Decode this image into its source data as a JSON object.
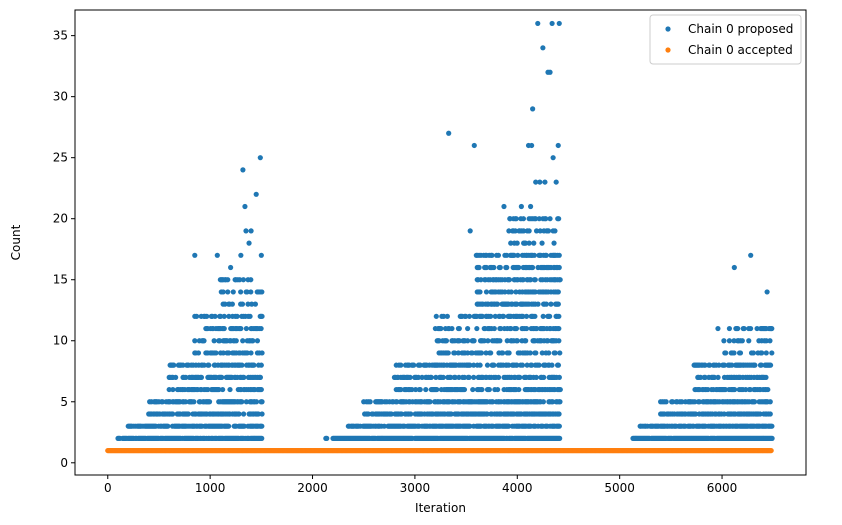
{
  "chart_data": {
    "type": "scatter",
    "title": "",
    "xlabel": "Iteration",
    "ylabel": "Count",
    "xlim": [
      -320,
      6820
    ],
    "ylim": [
      -1,
      37.1
    ],
    "xticks": [
      0,
      1000,
      2000,
      3000,
      4000,
      5000,
      6000
    ],
    "yticks": [
      0,
      5,
      10,
      15,
      20,
      25,
      30,
      35
    ],
    "legend_position": "top-right",
    "series": [
      {
        "name": "Chain 0 proposed",
        "color": "#1f77b4",
        "bands": [
          {
            "x0": 100,
            "x1": 1510,
            "y0": 2,
            "y1": 2,
            "density": 0.9
          },
          {
            "x0": 2130,
            "x1": 2140,
            "y0": 2,
            "y1": 2,
            "density": 1.0
          },
          {
            "x0": 2200,
            "x1": 4420,
            "y0": 2,
            "y1": 2,
            "density": 0.95
          },
          {
            "x0": 5130,
            "x1": 6490,
            "y0": 2,
            "y1": 2,
            "density": 0.95
          },
          {
            "x0": 200,
            "x1": 1510,
            "y0": 3,
            "y1": 3,
            "density": 0.75
          },
          {
            "x0": 2350,
            "x1": 4420,
            "y0": 3,
            "y1": 3,
            "density": 0.75
          },
          {
            "x0": 5200,
            "x1": 6490,
            "y0": 3,
            "y1": 3,
            "density": 0.75
          },
          {
            "x0": 400,
            "x1": 1510,
            "y0": 4,
            "y1": 5,
            "density": 0.6
          },
          {
            "x0": 2500,
            "x1": 4420,
            "y0": 4,
            "y1": 5,
            "density": 0.65
          },
          {
            "x0": 5400,
            "x1": 6490,
            "y0": 4,
            "y1": 5,
            "density": 0.6
          },
          {
            "x0": 600,
            "x1": 1510,
            "y0": 6,
            "y1": 8,
            "density": 0.5
          },
          {
            "x0": 2800,
            "x1": 4420,
            "y0": 6,
            "y1": 8,
            "density": 0.5
          },
          {
            "x0": 5700,
            "x1": 6490,
            "y0": 6,
            "y1": 8,
            "density": 0.45
          },
          {
            "x0": 850,
            "x1": 1510,
            "y0": 9,
            "y1": 12,
            "density": 0.35
          },
          {
            "x0": 3200,
            "x1": 4420,
            "y0": 9,
            "y1": 12,
            "density": 0.4
          },
          {
            "x0": 6000,
            "x1": 6490,
            "y0": 9,
            "y1": 11,
            "density": 0.3
          },
          {
            "x0": 1100,
            "x1": 1510,
            "y0": 13,
            "y1": 15,
            "density": 0.25
          },
          {
            "x0": 3600,
            "x1": 4420,
            "y0": 13,
            "y1": 17,
            "density": 0.45
          },
          {
            "x0": 3900,
            "x1": 4420,
            "y0": 18,
            "y1": 20,
            "density": 0.25
          }
        ],
        "points": [
          [
            850,
            17
          ],
          [
            1070,
            17
          ],
          [
            1320,
            24
          ],
          [
            1340,
            21
          ],
          [
            1350,
            19
          ],
          [
            1380,
            18
          ],
          [
            1400,
            19
          ],
          [
            1450,
            22
          ],
          [
            1490,
            25
          ],
          [
            1500,
            17
          ],
          [
            1200,
            16
          ],
          [
            1300,
            17
          ],
          [
            3330,
            27
          ],
          [
            3540,
            19
          ],
          [
            3580,
            26
          ],
          [
            3870,
            21
          ],
          [
            4110,
            26
          ],
          [
            4140,
            26
          ],
          [
            4150,
            29
          ],
          [
            4200,
            36
          ],
          [
            4250,
            34
          ],
          [
            4300,
            32
          ],
          [
            4320,
            32
          ],
          [
            4340,
            36
          ],
          [
            4350,
            25
          ],
          [
            4380,
            23
          ],
          [
            4400,
            26
          ],
          [
            4410,
            36
          ],
          [
            4180,
            23
          ],
          [
            4220,
            23
          ],
          [
            4130,
            21
          ],
          [
            4270,
            23
          ],
          [
            4320,
            20
          ],
          [
            4060,
            20
          ],
          [
            3930,
            20
          ],
          [
            4040,
            21
          ],
          [
            6120,
            16
          ],
          [
            6280,
            17
          ],
          [
            6440,
            14
          ],
          [
            6480,
            11
          ],
          [
            5960,
            11
          ]
        ]
      },
      {
        "name": "Chain 0 accepted",
        "color": "#ff7f0e",
        "constant": {
          "x0": 0,
          "x1": 6480,
          "y": 1,
          "step": 8
        }
      }
    ]
  }
}
